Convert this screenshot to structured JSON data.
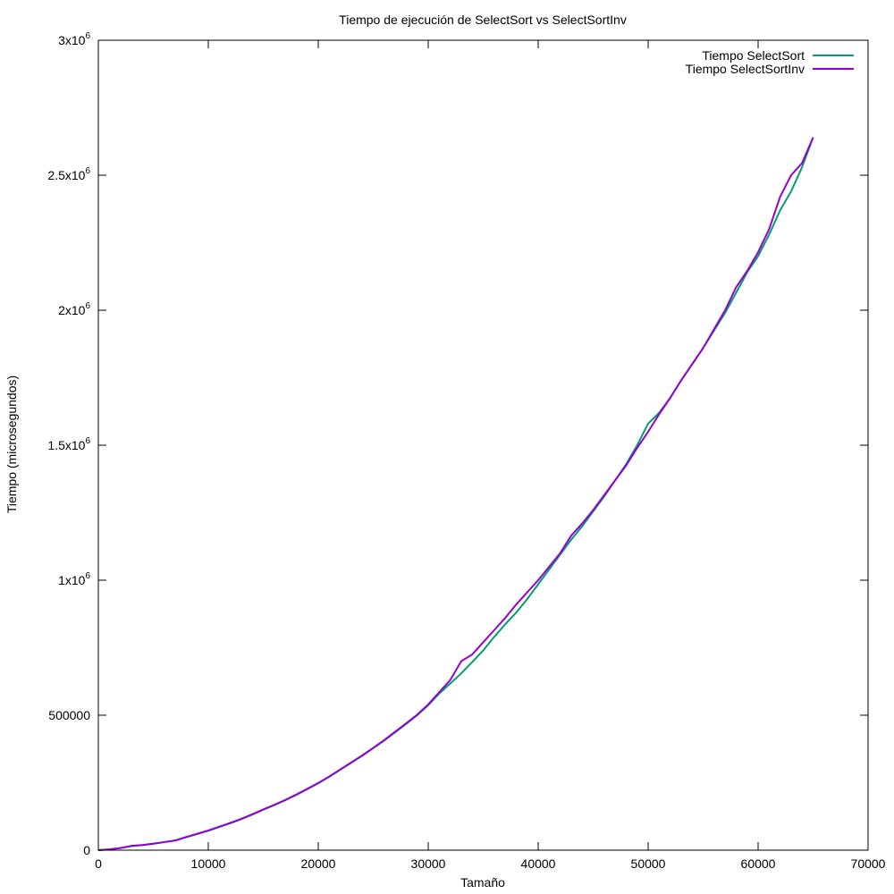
{
  "chart_data": {
    "type": "line",
    "title": "Tiempo de ejecución de SelectSort vs SelectSortInv",
    "xlabel": "Tamaño",
    "ylabel": "Tiempo (microsegundos)",
    "xlim": [
      0,
      70000
    ],
    "ylim": [
      0,
      3000000
    ],
    "grid": false,
    "legend_position": "top-right",
    "x_ticks": [
      {
        "value": 0,
        "label": "0"
      },
      {
        "value": 10000,
        "label": "10000"
      },
      {
        "value": 20000,
        "label": "20000"
      },
      {
        "value": 30000,
        "label": "30000"
      },
      {
        "value": 40000,
        "label": "40000"
      },
      {
        "value": 50000,
        "label": "50000"
      },
      {
        "value": 60000,
        "label": "60000"
      },
      {
        "value": 70000,
        "label": "70000"
      }
    ],
    "y_ticks": [
      {
        "value": 0,
        "label": "0"
      },
      {
        "value": 500000,
        "label": "500000"
      },
      {
        "value": 1000000,
        "label": "1x10",
        "sup": "6"
      },
      {
        "value": 1500000,
        "label": "1.5x10",
        "sup": "6"
      },
      {
        "value": 2000000,
        "label": "2x10",
        "sup": "6"
      },
      {
        "value": 2500000,
        "label": "2.5x10",
        "sup": "6"
      },
      {
        "value": 3000000,
        "label": "3x10",
        "sup": "6"
      }
    ],
    "series": [
      {
        "name": "Tiempo SelectSort",
        "color": "#009e73",
        "x": [
          0,
          1000,
          2000,
          3000,
          4000,
          5000,
          6000,
          7000,
          8000,
          9000,
          10000,
          11000,
          12000,
          13000,
          14000,
          15000,
          16000,
          17000,
          18000,
          19000,
          20000,
          21000,
          22000,
          23000,
          24000,
          25000,
          26000,
          27000,
          28000,
          29000,
          30000,
          31000,
          32000,
          33000,
          34000,
          35000,
          36000,
          37000,
          38000,
          39000,
          40000,
          41000,
          42000,
          43000,
          44000,
          45000,
          46000,
          47000,
          48000,
          49000,
          50000,
          51000,
          52000,
          53000,
          54000,
          55000,
          56000,
          57000,
          58000,
          59000,
          60000,
          61000,
          62000,
          63000,
          64000,
          65000
        ],
        "y": [
          0,
          3000,
          8000,
          15000,
          19000,
          24000,
          30000,
          36000,
          48000,
          60000,
          72000,
          86000,
          100000,
          115000,
          132000,
          150000,
          167000,
          185000,
          205000,
          226000,
          248000,
          272000,
          298000,
          324000,
          350000,
          378000,
          406000,
          437000,
          468000,
          500000,
          537000,
          580000,
          617000,
          655000,
          697000,
          740000,
          790000,
          837000,
          880000,
          930000,
          985000,
          1040000,
          1095000,
          1150000,
          1200000,
          1255000,
          1310000,
          1370000,
          1430000,
          1500000,
          1580000,
          1620000,
          1675000,
          1740000,
          1800000,
          1860000,
          1925000,
          1990000,
          2065000,
          2140000,
          2200000,
          2280000,
          2370000,
          2440000,
          2530000,
          2640000
        ]
      },
      {
        "name": "Tiempo SelectSortInv",
        "color": "#9400d3",
        "x": [
          0,
          1000,
          2000,
          3000,
          4000,
          5000,
          6000,
          7000,
          8000,
          9000,
          10000,
          11000,
          12000,
          13000,
          14000,
          15000,
          16000,
          17000,
          18000,
          19000,
          20000,
          21000,
          22000,
          23000,
          24000,
          25000,
          26000,
          27000,
          28000,
          29000,
          30000,
          31000,
          32000,
          33000,
          34000,
          35000,
          36000,
          37000,
          38000,
          39000,
          40000,
          41000,
          42000,
          43000,
          44000,
          45000,
          46000,
          47000,
          48000,
          49000,
          50000,
          51000,
          52000,
          53000,
          54000,
          55000,
          56000,
          57000,
          58000,
          59000,
          60000,
          61000,
          62000,
          63000,
          64000,
          65000
        ],
        "y": [
          0,
          3000,
          8000,
          16000,
          19000,
          24000,
          30000,
          36000,
          49000,
          61000,
          73000,
          87000,
          101000,
          116000,
          133000,
          151000,
          168000,
          186000,
          206000,
          227000,
          249000,
          273000,
          299000,
          325000,
          351000,
          379000,
          408000,
          439000,
          470000,
          502000,
          540000,
          585000,
          630000,
          700000,
          725000,
          770000,
          815000,
          860000,
          910000,
          955000,
          1000000,
          1050000,
          1100000,
          1165000,
          1210000,
          1260000,
          1315000,
          1370000,
          1425000,
          1490000,
          1550000,
          1615000,
          1675000,
          1740000,
          1800000,
          1860000,
          1930000,
          2000000,
          2085000,
          2145000,
          2215000,
          2300000,
          2420000,
          2500000,
          2545000,
          2640000
        ]
      }
    ]
  }
}
